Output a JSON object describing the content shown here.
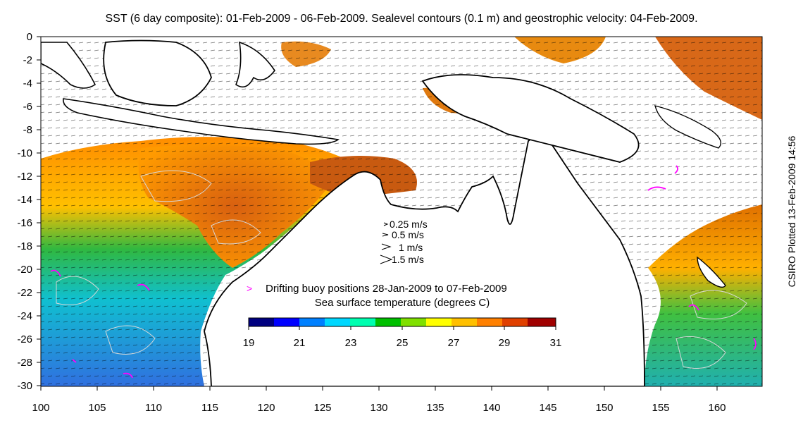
{
  "title": "SST (6 day composite): 01-Feb-2009 - 06-Feb-2009. Sealevel contours (0.1 m) and geostrophic velocity: 04-Feb-2009.",
  "side_credit": "CSIRO Plotted 13-Feb-2009 14:56",
  "axes": {
    "x_ticks": [
      "100",
      "105",
      "110",
      "115",
      "120",
      "125",
      "130",
      "135",
      "140",
      "145",
      "150",
      "155",
      "160"
    ],
    "y_ticks": [
      "0",
      "-2",
      "-4",
      "-6",
      "-8",
      "-10",
      "-12",
      "-14",
      "-16",
      "-18",
      "-20",
      "-22",
      "-24",
      "-26",
      "-28",
      "-30"
    ],
    "x_range": [
      100,
      164
    ],
    "y_range": [
      -30,
      0
    ]
  },
  "velocity_legend": [
    "0.25 m/s",
    "0.5 m/s",
    "1 m/s",
    "1.5 m/s"
  ],
  "buoy_legend": {
    "marker": ">",
    "text": "Drifting buoy positions 28-Jan-2009 to 07-Feb-2009",
    "color": "#ff00ff"
  },
  "colorbar": {
    "title": "Sea surface temperature (degrees C)",
    "ticks": [
      "19",
      "21",
      "23",
      "25",
      "27",
      "29",
      "31"
    ],
    "range": [
      19,
      31
    ],
    "colors": [
      "#000080",
      "#0000ff",
      "#0080ff",
      "#00d8ff",
      "#00ffb0",
      "#00c000",
      "#80e000",
      "#ffff00",
      "#ffc000",
      "#ff8000",
      "#e04000",
      "#a00000"
    ]
  },
  "layer_colors": {
    "land": "#ffffff",
    "coastline": "#000000",
    "contours": "#d8d8d8",
    "vectors": "#000000",
    "buoys": "#ff00ff"
  }
}
